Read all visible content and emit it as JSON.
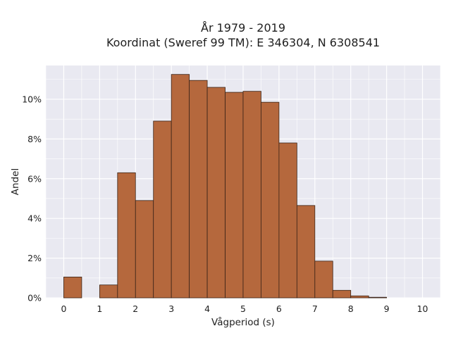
{
  "chart_data": {
    "type": "bar",
    "title_lines": [
      "År 1979 - 2019",
      "Koordinat (Sweref 99 TM): E 346304, N 6308541"
    ],
    "xlabel": "Vågperiod (s)",
    "ylabel": "Andel",
    "xlim": [
      -0.5,
      10.5
    ],
    "ylim": [
      0,
      11.7
    ],
    "x_ticks": [
      0,
      1,
      2,
      3,
      4,
      5,
      6,
      7,
      8,
      9,
      10
    ],
    "y_ticks": [
      0,
      2,
      4,
      6,
      8,
      10
    ],
    "y_tick_labels": [
      "0%",
      "2%",
      "4%",
      "6%",
      "8%",
      "10%"
    ],
    "y_unit": "percent",
    "bin_width": 0.5,
    "bins_start": [
      0,
      0.5,
      1,
      1.5,
      2,
      2.5,
      3,
      3.5,
      4,
      4.5,
      5,
      5.5,
      6,
      6.5,
      7,
      7.5,
      8,
      8.5,
      9,
      9.5
    ],
    "values": [
      1.05,
      0,
      0.65,
      6.3,
      4.9,
      8.9,
      11.25,
      10.95,
      10.6,
      10.35,
      10.4,
      9.85,
      7.8,
      4.65,
      1.85,
      0.38,
      0.1,
      0.03,
      0,
      0
    ],
    "grid": true,
    "legend": "none",
    "colors": {
      "bar_fill": "#b5683d",
      "bar_edge": "#3a2418",
      "plot_background": "#e9e9f1",
      "grid": "#ffffff"
    }
  }
}
